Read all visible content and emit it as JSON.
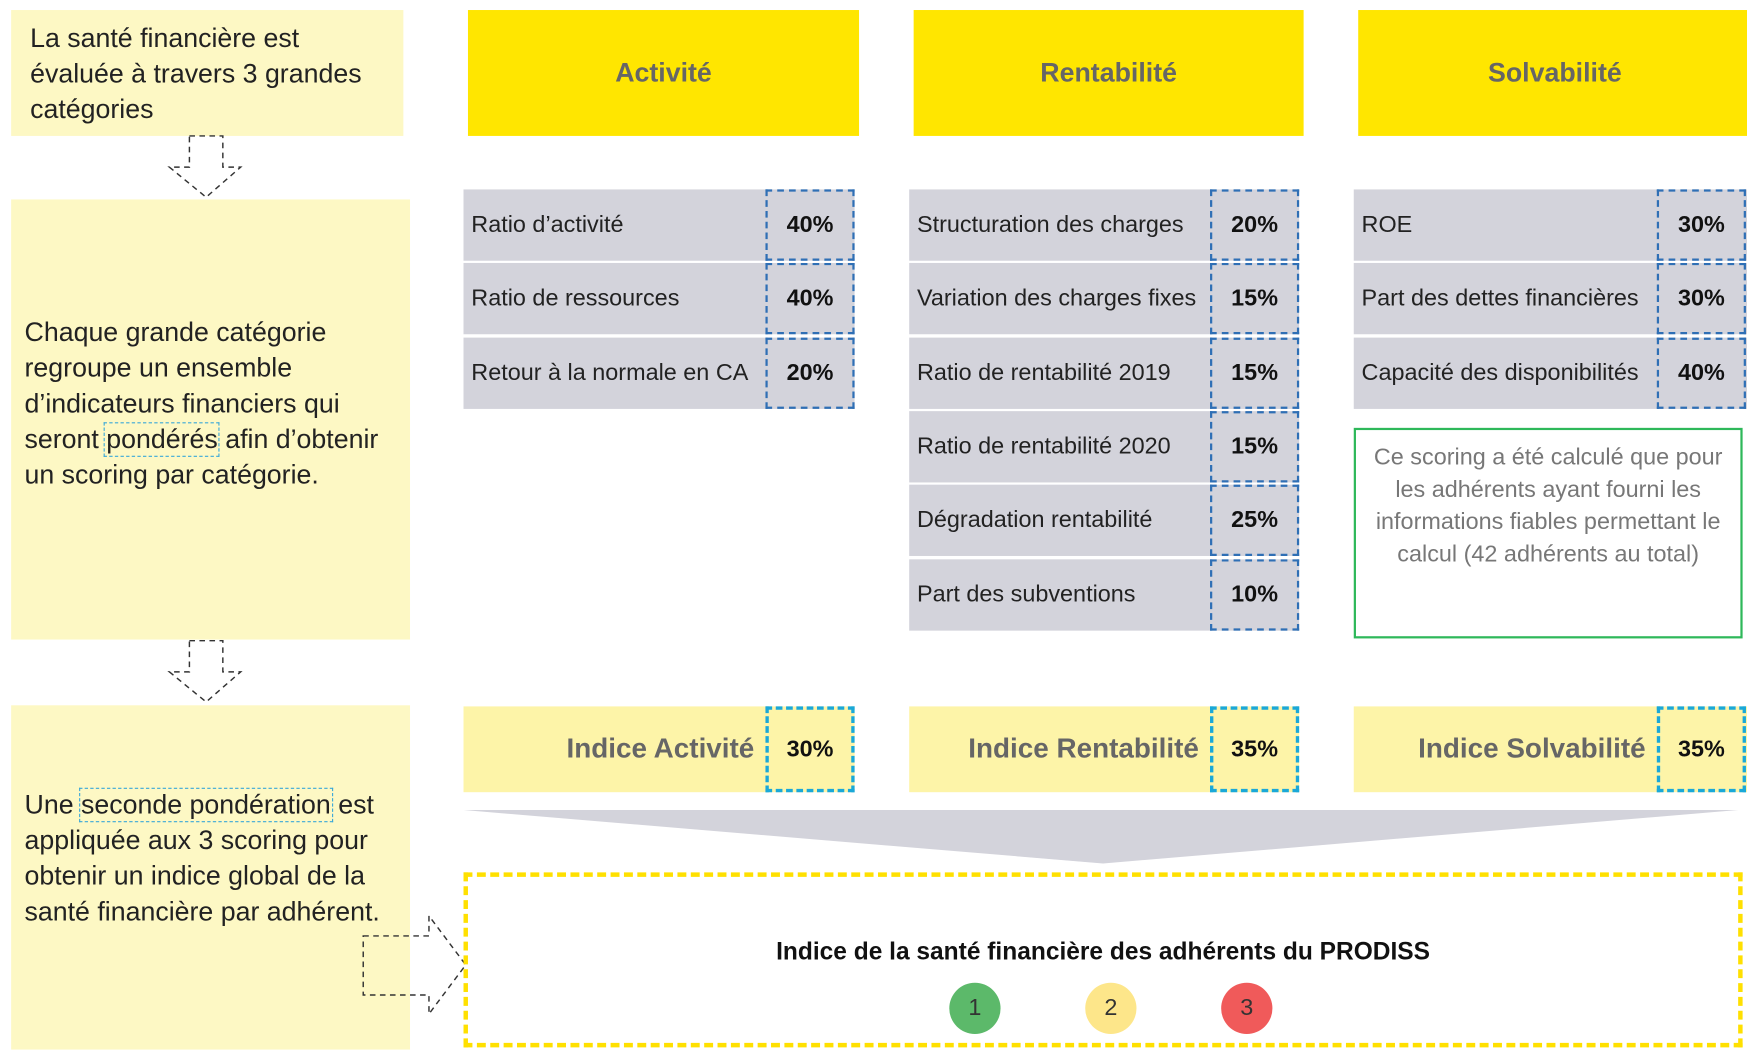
{
  "notes": [
    {
      "text": "La santé financière est évaluée à travers 3 grandes catégories"
    },
    {
      "before": "Chaque grande catégorie regroupe un ensemble d’indicateurs financiers qui seront ",
      "highlight": "pondérés",
      "after": " afin d’obtenir un scoring par catégorie."
    },
    {
      "before": "Une ",
      "highlight": "seconde pondération",
      "after": " est appliquée aux 3 scoring pour obtenir un indice global de la santé financière par adhérent."
    }
  ],
  "columns": [
    {
      "title": "Activité",
      "indicators": [
        {
          "label": "Ratio d’activité",
          "weight": "40%"
        },
        {
          "label": "Ratio de ressources",
          "weight": "40%"
        },
        {
          "label": "Retour à la normale en CA",
          "weight": "20%"
        }
      ],
      "index": {
        "label": "Indice Activité",
        "weight": "30%"
      }
    },
    {
      "title": "Rentabilité",
      "indicators": [
        {
          "label": "Structuration des charges",
          "weight": "20%"
        },
        {
          "label": "Variation des charges fixes",
          "weight": "15%"
        },
        {
          "label": "Ratio de rentabilité 2019",
          "weight": "15%"
        },
        {
          "label": "Ratio de rentabilité 2020",
          "weight": "15%"
        },
        {
          "label": "Dégradation rentabilité",
          "weight": "25%"
        },
        {
          "label": "Part des subventions",
          "weight": "10%"
        }
      ],
      "index": {
        "label": "Indice Rentabilité",
        "weight": "35%"
      }
    },
    {
      "title": "Solvabilité",
      "indicators": [
        {
          "label": "ROE",
          "weight": "30%"
        },
        {
          "label": "Part des dettes financières",
          "weight": "30%"
        },
        {
          "label": "Capacité des disponibilités",
          "weight": "40%"
        }
      ],
      "index": {
        "label": "Indice Solvabilité",
        "weight": "35%"
      },
      "note": "Ce scoring a été calculé que pour les adhérents ayant fourni les informations fiables permettant le calcul (42 adhérents au total)"
    }
  ],
  "result": {
    "title": "Indice de la santé financière des adhérents du PRODISS",
    "levels": [
      "1",
      "2",
      "3"
    ]
  }
}
